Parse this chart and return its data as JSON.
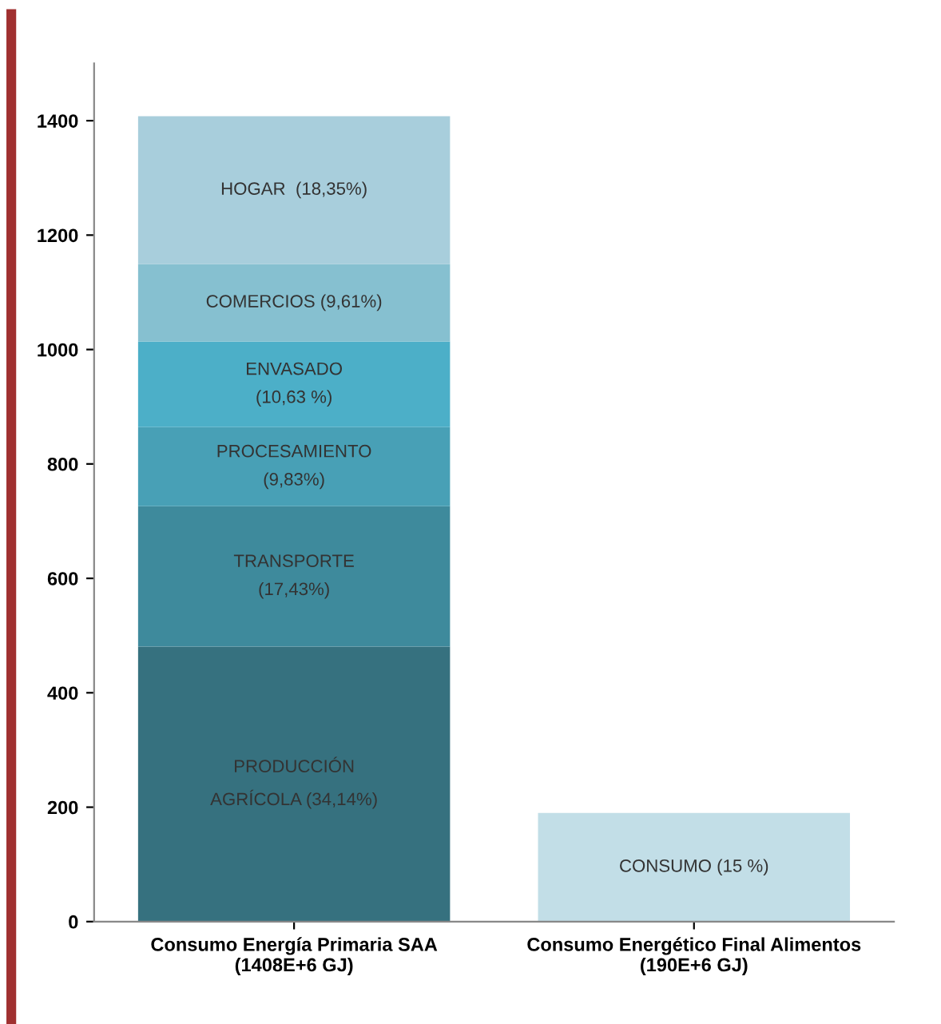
{
  "chart_data": {
    "type": "bar",
    "stacked": true,
    "categories": [
      "Consumo Energía Primaria SAA\n(1408E+6 GJ)",
      "Consumo Energético Final Alimentos\n(190E+6 GJ)"
    ],
    "series": [
      {
        "name": "PRODUCCIÓN\nAGRÍCOLA (34,14%)",
        "color": "#36717f",
        "values": [
          480.7,
          null
        ]
      },
      {
        "name": "TRANSPORTE\n(17,43%)",
        "color": "#3e8a9c",
        "values": [
          245.4,
          null
        ]
      },
      {
        "name": "PROCESAMIENTO\n(9,83%)",
        "color": "#48a0b6",
        "values": [
          138.4,
          null
        ]
      },
      {
        "name": "ENVASADO\n(10,63 %)",
        "color": "#4cafc8",
        "values": [
          149.7,
          null
        ]
      },
      {
        "name": "COMERCIOS (9,61%)",
        "color": "#86c0d0",
        "values": [
          135.3,
          null
        ]
      },
      {
        "name": "HOGAR  (18,35%)",
        "color": "#a8cedc",
        "values": [
          258.4,
          null
        ]
      },
      {
        "name": "CONSUMO (15 %)",
        "color": "#c2dee7",
        "values": [
          null,
          190
        ]
      }
    ],
    "ylim": [
      0,
      1500
    ],
    "yticks": [
      0,
      200,
      400,
      600,
      800,
      1000,
      1200,
      1400
    ],
    "grid": false,
    "legend": false
  }
}
